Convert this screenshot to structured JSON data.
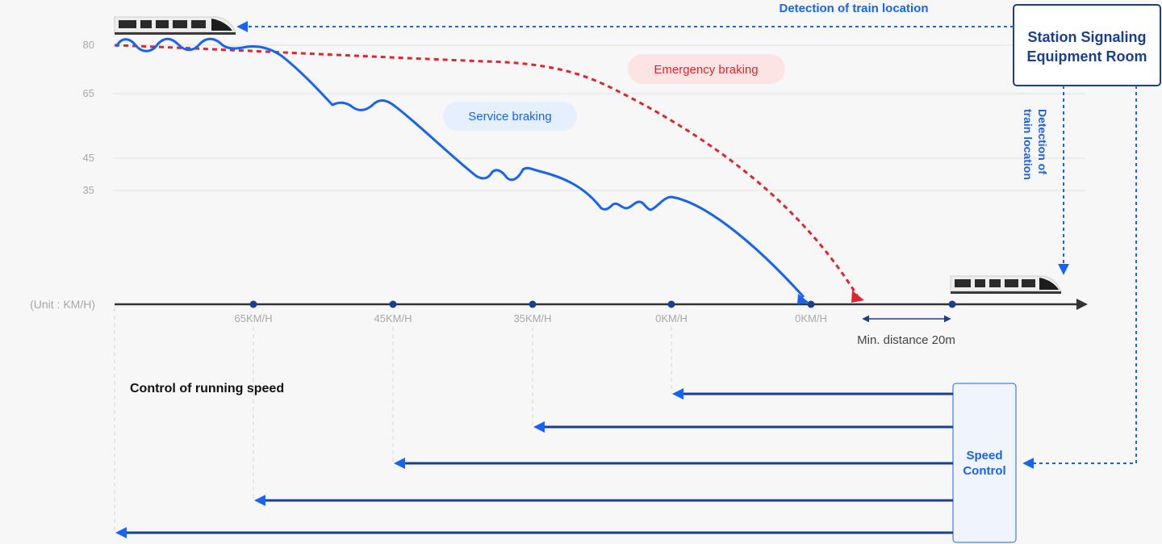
{
  "y_axis": {
    "ticks": [
      "80",
      "65",
      "45",
      "35"
    ],
    "unit_label": "(Unit : KM/H)"
  },
  "x_axis": {
    "speed_limits": [
      "65KM/H",
      "45KM/H",
      "35KM/H",
      "0KM/H",
      "0KM/H"
    ]
  },
  "labels": {
    "service_braking": "Service braking",
    "emergency_braking": "Emergency braking",
    "min_distance": "Min. distance 20m",
    "control_title": "Control of running speed",
    "detection_top": "Detection of train location",
    "detection_side_line1": "Detection of",
    "detection_side_line2": "train location"
  },
  "station_room": {
    "line1": "Station Signaling",
    "line2": "Equipment Room"
  },
  "speed_control": {
    "line1": "Speed",
    "line2": "Control"
  },
  "colors": {
    "service_blue": "#1763f2",
    "emergency_red": "#e0252f",
    "navy": "#1b3f8f",
    "axis": "#333333",
    "grid": "#e2e2e2",
    "muted_text": "#a8a8a8"
  },
  "icons": [
    "train-icon-left",
    "train-icon-right",
    "arrowhead-icon"
  ]
}
